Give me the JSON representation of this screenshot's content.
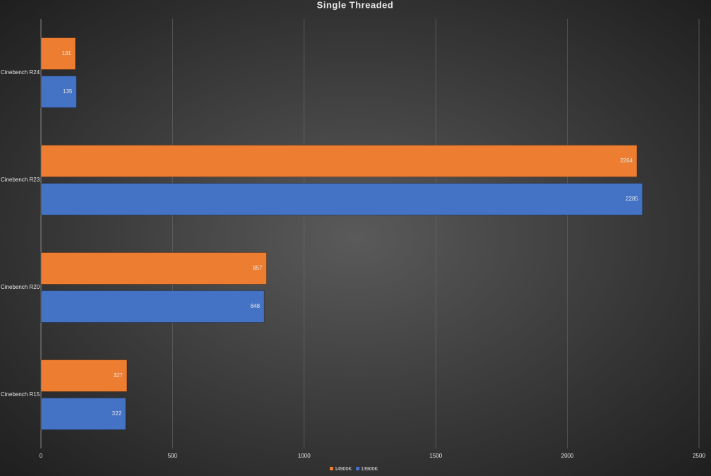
{
  "chart_data": {
    "type": "barh",
    "title": "Single Threaded",
    "categories": [
      "Cinebench R24",
      "Cinebench R23",
      "Cinebench R20",
      "Cinebench R15"
    ],
    "series": [
      {
        "name": "14900K",
        "color": "#ed7d31",
        "values": [
          131,
          2264,
          857,
          327
        ]
      },
      {
        "name": "13900K",
        "color": "#4472c4",
        "values": [
          135,
          2285,
          848,
          322
        ]
      }
    ],
    "xlim": [
      0,
      2500
    ],
    "xticks": [
      0,
      500,
      1000,
      1500,
      2000,
      2500
    ],
    "grid": true,
    "legend": "bottom"
  }
}
